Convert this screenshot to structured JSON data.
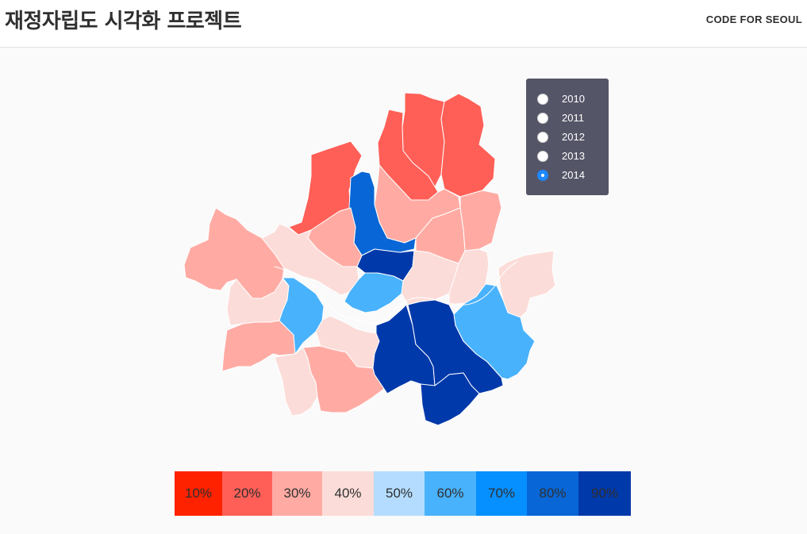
{
  "header": {
    "title": "재정자립도 시각화 프로젝트",
    "brand": "CODE FOR SEOUL"
  },
  "year_selector": {
    "options": [
      "2010",
      "2011",
      "2012",
      "2013",
      "2014"
    ],
    "selected": "2014"
  },
  "legend": {
    "items": [
      {
        "label": "10%",
        "color": "#ff2200"
      },
      {
        "label": "20%",
        "color": "#ff5f57"
      },
      {
        "label": "30%",
        "color": "#ffaba4"
      },
      {
        "label": "40%",
        "color": "#fcdcd8"
      },
      {
        "label": "50%",
        "color": "#b3dcff"
      },
      {
        "label": "60%",
        "color": "#49b2fc"
      },
      {
        "label": "70%",
        "color": "#068fff"
      },
      {
        "label": "80%",
        "color": "#0866d6"
      },
      {
        "label": "90%",
        "color": "#0039aa"
      }
    ]
  },
  "map": {
    "river_color": "#ffffff",
    "district_levels": {
      "dobong": "20%",
      "nowon": "20%",
      "gangbuk": "20%",
      "eunpyeong": "20%",
      "jongno": "80%",
      "seongbuk": "30%",
      "jungnang": "30%",
      "dongdaemun": "30%",
      "seodaemun": "30%",
      "mapo": "40%",
      "jung": "90%",
      "gwangjin": "40%",
      "seongdong": "40%",
      "gangdong": "40%",
      "yongsan": "60%",
      "gangseo": "30%",
      "yangcheon": "40%",
      "guro": "30%",
      "geumcheon": "40%",
      "yeongdeungpo": "60%",
      "dongjak": "40%",
      "gwanak": "30%",
      "seocho": "90%",
      "gangnam": "90%",
      "songpa": "60%"
    }
  }
}
